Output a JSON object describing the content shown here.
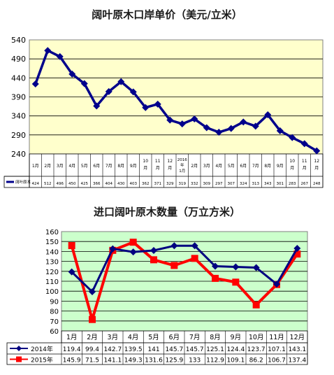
{
  "chart_data": [
    {
      "type": "line",
      "title": "阔叶原木口岸单价（美元/立米）",
      "ylim": [
        240,
        540
      ],
      "yticks": [
        240,
        290,
        340,
        390,
        440,
        490,
        540
      ],
      "categories": [
        "1月",
        "2月",
        "3月",
        "4月",
        "5月",
        "6月",
        "7月",
        "8月",
        "9月",
        "10月",
        "11月",
        "12月",
        "2016年1月",
        "2月",
        "3月",
        "4月",
        "5月",
        "6月",
        "7月",
        "8月",
        "9月",
        "10月",
        "11月",
        "12月"
      ],
      "series": [
        {
          "name": "阔叶原木",
          "color": "#00008b",
          "values": [
            424,
            512,
            496,
            450,
            425,
            366,
            404,
            430,
            403,
            362,
            371,
            329,
            319,
            332,
            309,
            297,
            307,
            324,
            313,
            343,
            301,
            283,
            267,
            248
          ]
        }
      ],
      "grid": true,
      "legend": "table-row",
      "background": "#ffffcc"
    },
    {
      "type": "line",
      "title": "进口阔叶原木数量（万立方米）",
      "ylim": [
        60,
        160
      ],
      "yticks": [
        60,
        70,
        80,
        90,
        100,
        110,
        120,
        130,
        140,
        150,
        160
      ],
      "categories": [
        "1月",
        "2月",
        "3月",
        "4月",
        "5月",
        "6月",
        "7月",
        "8月",
        "9月",
        "10月",
        "11月",
        "12月"
      ],
      "series": [
        {
          "name": "2014年",
          "color": "#000080",
          "marker": "diamond",
          "labels": [
            "119.4",
            "99.4",
            "142.7",
            "139.5",
            "141",
            "145.7",
            "145.7",
            "125.1",
            "124.4",
            "123.7",
            "107.1",
            "143.1"
          ],
          "values": [
            119.4,
            99.4,
            142.7,
            139.5,
            141,
            145.7,
            145.7,
            125.1,
            124.4,
            123.7,
            107.1,
            143.1
          ]
        },
        {
          "name": "2015年",
          "color": "#ff0000",
          "marker": "square",
          "labels": [
            "145.9",
            "71.5",
            "141.1",
            "149.3",
            "131.6",
            "125.9",
            "133",
            "112.9",
            "109.1",
            "86.2",
            "106.7",
            "137.4"
          ],
          "values": [
            145.9,
            71.5,
            141.1,
            149.3,
            131.6,
            125.9,
            133,
            112.9,
            109.1,
            86.2,
            106.7,
            137.4
          ]
        }
      ],
      "grid": true,
      "legend": "table-rows",
      "background": "#ccffcc"
    }
  ]
}
